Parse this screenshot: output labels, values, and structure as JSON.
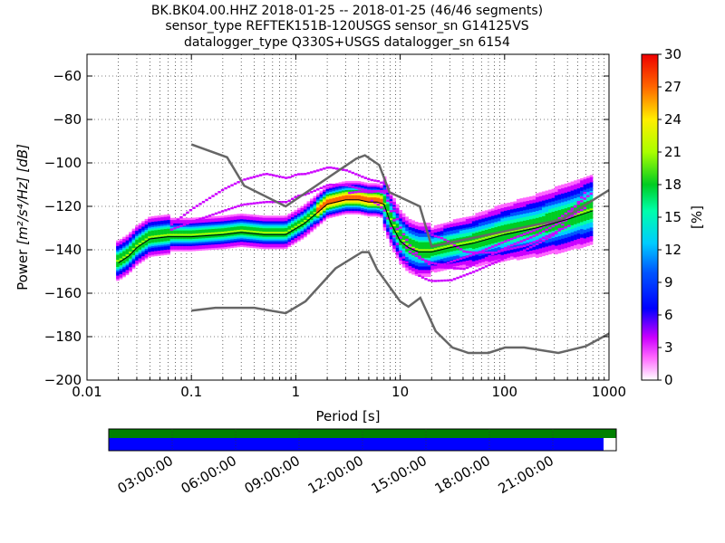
{
  "title_lines": [
    "BK.BK04.00.HHZ   2018-01-25 -- 2018-01-25  (46/46 segments)",
    "sensor_type REFTEK151B-120USGS sensor_sn G14125VS",
    "datalogger_type Q330S+USGS datalogger_sn 6154"
  ],
  "chart_data": {
    "type": "heatmap",
    "title": "BK.BK04.00.HHZ   2018-01-25 -- 2018-01-25  (46/46 segments)",
    "xlabel": "Period [s]",
    "ylabel_prefix": "Power",
    "ylabel_unit": "[m²/s⁴/Hz] [dB]",
    "x_scale": "log",
    "xlim": [
      0.01,
      1000
    ],
    "ylim": [
      -200,
      -50
    ],
    "x_ticks": [
      0.01,
      0.1,
      1,
      10,
      100,
      1000
    ],
    "x_tick_labels": [
      "0.01",
      "0.1",
      "1",
      "10",
      "100",
      "1000"
    ],
    "y_ticks": [
      -200,
      -180,
      -160,
      -140,
      -120,
      -100,
      -80,
      -60
    ],
    "y_tick_labels": [
      "−200",
      "−180",
      "−160",
      "−140",
      "−120",
      "−100",
      "−80",
      "−60"
    ],
    "grid": "dotted",
    "colorbar": {
      "label": "[%]",
      "range": [
        0,
        30
      ],
      "ticks": [
        0,
        3,
        6,
        9,
        12,
        15,
        18,
        21,
        24,
        27,
        30
      ],
      "tick_labels": [
        "0",
        "3",
        "6",
        "9",
        "12",
        "15",
        "18",
        "21",
        "24",
        "27",
        "30"
      ]
    },
    "noise_models": [
      {
        "name": "NHNM",
        "x": [
          0.1,
          0.22,
          0.32,
          0.8,
          3.8,
          4.6,
          6.3,
          7.9,
          15.4,
          20,
          354.8,
          1000
        ],
        "y": [
          -91.5,
          -97.4,
          -110.5,
          -120,
          -98,
          -96.5,
          -101,
          -113.5,
          -120,
          -138.5,
          -126,
          -112.5
        ]
      },
      {
        "name": "NLNM",
        "x": [
          0.1,
          0.17,
          0.4,
          0.8,
          1.24,
          2.4,
          4.3,
          5,
          6,
          10,
          12,
          15.6,
          21.9,
          31.6,
          45,
          70,
          101,
          154,
          328,
          600,
          1000
        ],
        "y": [
          -168,
          -166.7,
          -166.7,
          -169.2,
          -163.7,
          -148.6,
          -141.1,
          -141.1,
          -149,
          -163.8,
          -166.2,
          -162.1,
          -177.5,
          -185,
          -187.5,
          -187.5,
          -185,
          -185,
          -187.5,
          -184.4,
          -178.6
        ]
      }
    ],
    "median_curve": {
      "x": [
        0.02,
        0.025,
        0.03,
        0.04,
        0.06,
        0.1,
        0.2,
        0.3,
        0.5,
        0.8,
        1.2,
        1.6,
        2,
        3,
        4,
        5,
        6,
        7,
        8,
        10,
        12,
        15,
        20,
        30,
        50,
        100,
        200,
        400,
        700
      ],
      "y": [
        -145,
        -142,
        -138,
        -134,
        -133,
        -133,
        -132,
        -131,
        -132,
        -132,
        -127,
        -122,
        -118,
        -116,
        -116,
        -117,
        -117,
        -118,
        -125,
        -134,
        -138,
        -140,
        -140,
        -138,
        -136,
        -132,
        -129,
        -125,
        -121
      ]
    },
    "mode_curve": {
      "x": [
        0.02,
        0.025,
        0.03,
        0.04,
        0.06,
        0.1,
        0.2,
        0.3,
        0.5,
        0.8,
        1.2,
        1.6,
        2,
        3,
        4,
        5,
        6,
        7,
        8,
        10,
        12,
        15,
        20,
        30,
        50,
        100,
        200,
        400,
        700
      ],
      "y": [
        -146,
        -143,
        -139,
        -135,
        -134,
        -134,
        -133,
        -132,
        -133,
        -133,
        -128,
        -123,
        -119,
        -117,
        -117,
        -118,
        -118,
        -119,
        -127,
        -136,
        -139,
        -141,
        -141,
        -139,
        -137,
        -133,
        -130,
        -126,
        -122
      ]
    },
    "timeline": {
      "tick_labels": [
        "03:00:00",
        "06:00:00",
        "09:00:00",
        "12:00:00",
        "15:00:00",
        "18:00:00",
        "21:00:00"
      ],
      "tick_fractions": [
        0.125,
        0.25,
        0.375,
        0.5,
        0.625,
        0.75,
        0.875
      ],
      "segments_coverage": 1.0,
      "data_coverage": 0.975,
      "colors": {
        "segments": "#008000",
        "data": "#0000ff"
      }
    }
  }
}
